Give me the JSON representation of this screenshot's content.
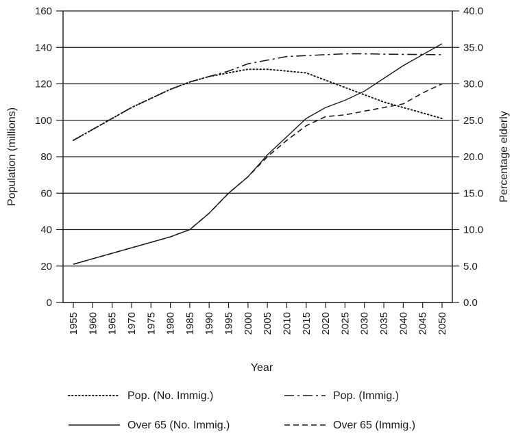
{
  "chart_data": {
    "type": "line",
    "xlabel": "Year",
    "ylabel": "Population (millions)",
    "y2label": "Percentage elderly",
    "x": [
      1955,
      1960,
      1965,
      1970,
      1975,
      1980,
      1985,
      1990,
      1995,
      2000,
      2005,
      2010,
      2015,
      2020,
      2025,
      2030,
      2035,
      2040,
      2045,
      2050
    ],
    "ylim": [
      0,
      160
    ],
    "y2lim": [
      0,
      40
    ],
    "yticks": [
      "0",
      "20",
      "40",
      "60",
      "80",
      "100",
      "120",
      "140",
      "160"
    ],
    "y2ticks": [
      "0.0",
      "5.0",
      "10.0",
      "15.0",
      "20.0",
      "25.0",
      "30.0",
      "35.0",
      "40.0"
    ],
    "grid": true,
    "legend_position": "bottom",
    "series": [
      {
        "name": "Pop. (No. Immig.)",
        "axis": "left",
        "dash": "dotted",
        "values": [
          89,
          95,
          101,
          107,
          112,
          117,
          121,
          124,
          126,
          128,
          128,
          127,
          126,
          122,
          118,
          114,
          110,
          107,
          104,
          101
        ]
      },
      {
        "name": "Pop. (Immig.)",
        "axis": "left",
        "dash": "dashdot",
        "values": [
          89,
          95,
          101,
          107,
          112,
          117,
          121,
          124,
          127,
          131,
          133,
          135,
          135.5,
          136,
          136.5,
          136.5,
          136.3,
          136.2,
          136.1,
          136
        ]
      },
      {
        "name": "Over 65 (No. Immig.)",
        "axis": "left",
        "dash": "solid",
        "values": [
          21,
          24,
          27,
          30,
          33,
          36,
          40,
          49,
          60,
          69,
          81,
          91,
          101,
          107,
          111,
          116,
          123,
          130,
          136,
          142
        ]
      },
      {
        "name": "Over 65 (Immig.)",
        "axis": "left",
        "dash": "dashed",
        "values": [
          21,
          24,
          27,
          30,
          33,
          36,
          40,
          49,
          60,
          69,
          80,
          89,
          97,
          102,
          103,
          105,
          107,
          109,
          115,
          120
        ]
      }
    ]
  }
}
